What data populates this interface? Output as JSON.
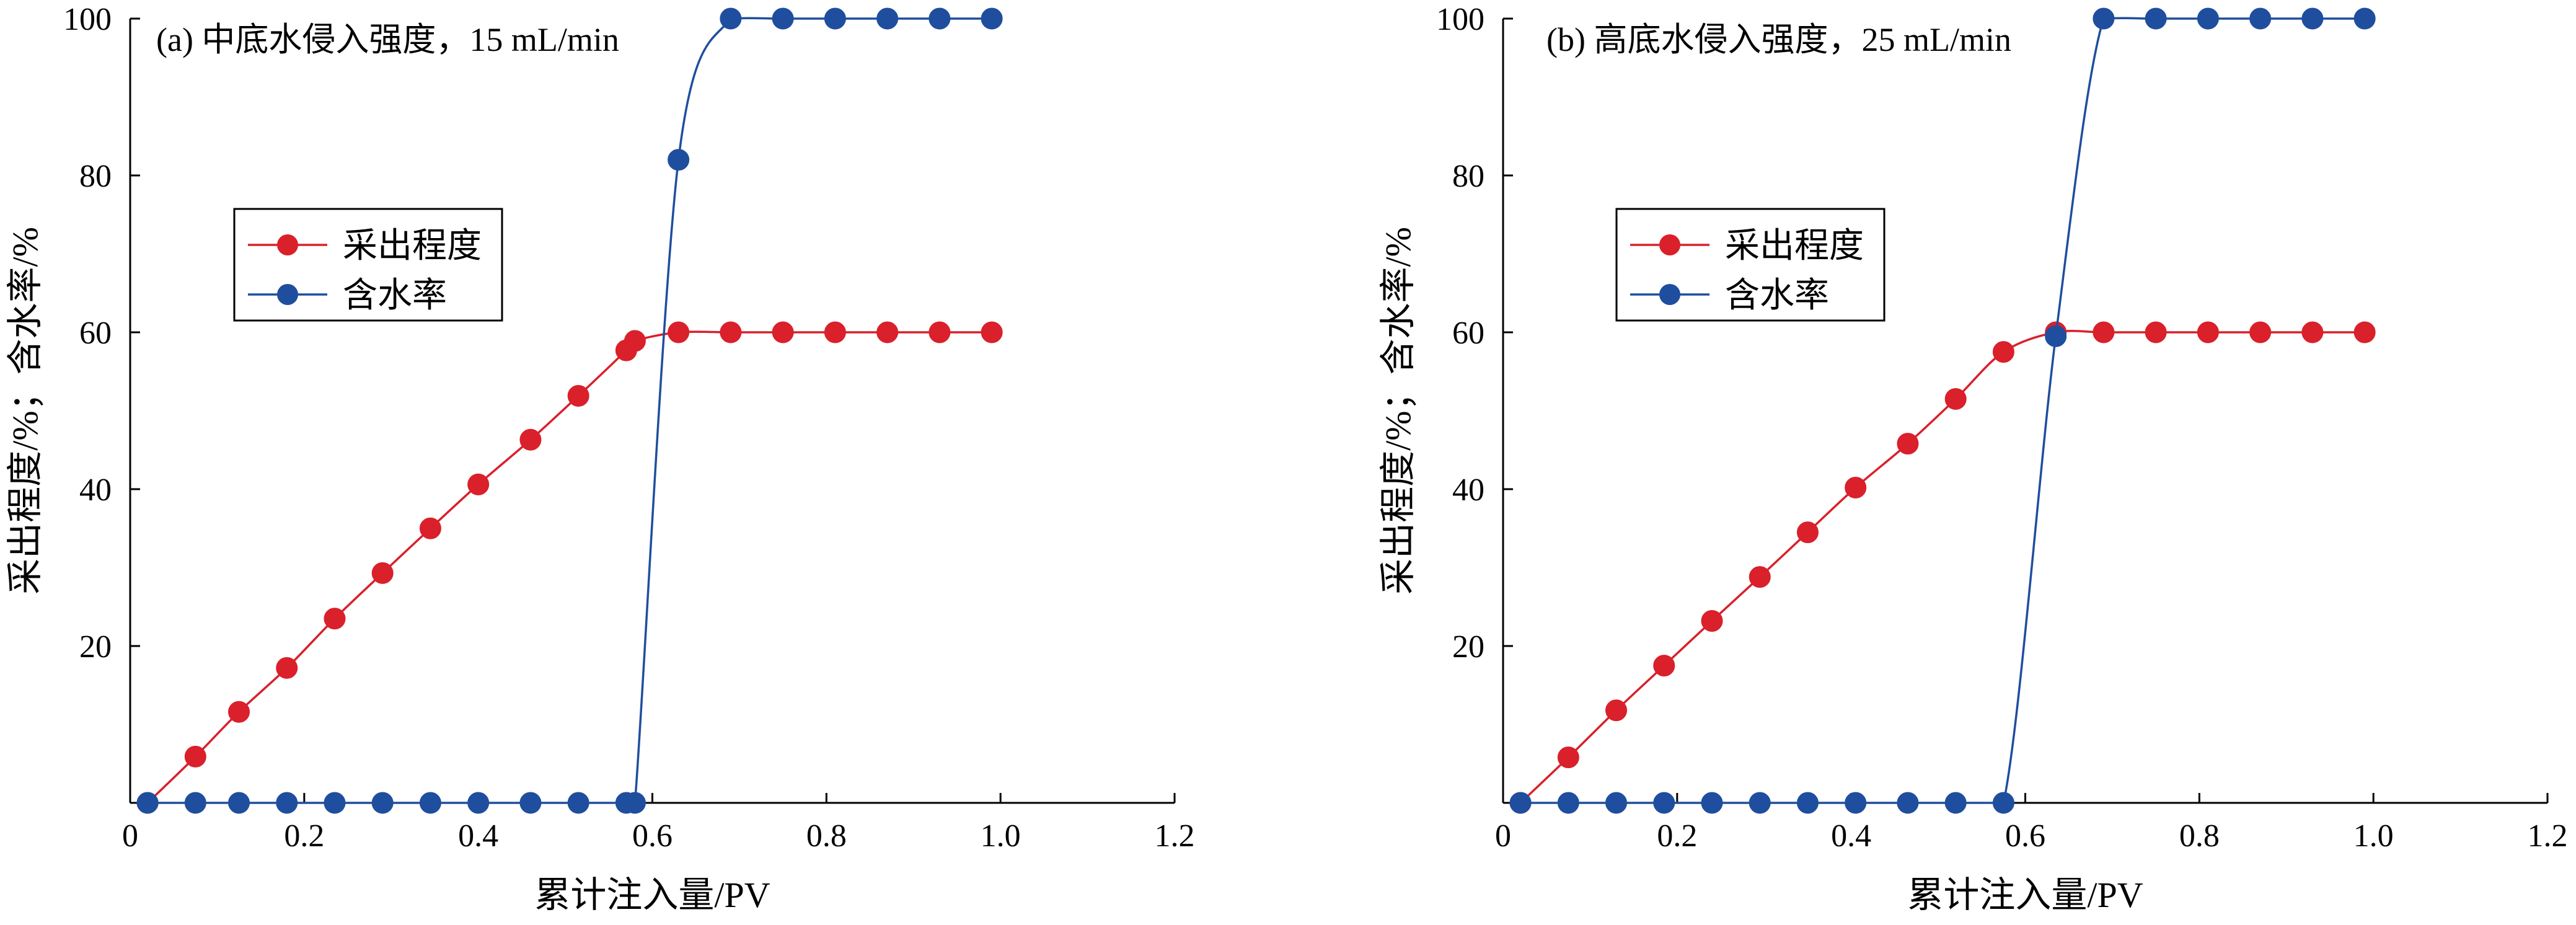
{
  "chart_data": [
    {
      "type": "line",
      "title": "(a) 中底水侵入强度，15 mL/min",
      "xlabel": "累计注入量/PV",
      "ylabel": "采出程度/%；含水率/%",
      "xlim": [
        0,
        1.2
      ],
      "ylim": [
        0,
        100
      ],
      "x_ticks": [
        "0",
        "0.2",
        "0.4",
        "0.6",
        "0.8",
        "1.0",
        "1.2"
      ],
      "y_ticks": [
        "20",
        "40",
        "60",
        "80",
        "100"
      ],
      "legend_position": "center-left",
      "series": [
        {
          "name": "采出程度",
          "color": "#d9202b",
          "points": [
            [
              0.02,
              0
            ],
            [
              0.075,
              5.9
            ],
            [
              0.125,
              11.6
            ],
            [
              0.18,
              17.2
            ],
            [
              0.235,
              23.5
            ],
            [
              0.29,
              29.3
            ],
            [
              0.345,
              35
            ],
            [
              0.4,
              40.6
            ],
            [
              0.46,
              46.3
            ],
            [
              0.515,
              51.9
            ],
            [
              0.57,
              57.7
            ],
            [
              0.58,
              58.9
            ],
            [
              0.63,
              60
            ],
            [
              0.69,
              60
            ],
            [
              0.75,
              60
            ],
            [
              0.81,
              60
            ],
            [
              0.87,
              60
            ],
            [
              0.93,
              60
            ],
            [
              0.99,
              60
            ]
          ]
        },
        {
          "name": "含水率",
          "color": "#1f4e9e",
          "points": [
            [
              0.02,
              0
            ],
            [
              0.075,
              0
            ],
            [
              0.125,
              0
            ],
            [
              0.18,
              0
            ],
            [
              0.235,
              0
            ],
            [
              0.29,
              0
            ],
            [
              0.345,
              0
            ],
            [
              0.4,
              0
            ],
            [
              0.46,
              0
            ],
            [
              0.515,
              0
            ],
            [
              0.57,
              0
            ],
            [
              0.58,
              0
            ],
            [
              0.63,
              82
            ],
            [
              0.69,
              100
            ],
            [
              0.75,
              100
            ],
            [
              0.81,
              100
            ],
            [
              0.87,
              100
            ],
            [
              0.93,
              100
            ],
            [
              0.99,
              100
            ]
          ]
        }
      ]
    },
    {
      "type": "line",
      "title": "(b) 高底水侵入强度，25 mL/min",
      "xlabel": "累计注入量/PV",
      "ylabel": "采出程度/%；含水率/%",
      "xlim": [
        0,
        1.2
      ],
      "ylim": [
        0,
        100
      ],
      "x_ticks": [
        "0",
        "0.2",
        "0.4",
        "0.6",
        "0.8",
        "1.0",
        "1.2"
      ],
      "y_ticks": [
        "20",
        "40",
        "60",
        "80",
        "100"
      ],
      "legend_position": "center-left",
      "series": [
        {
          "name": "采出程度",
          "color": "#d9202b",
          "points": [
            [
              0.02,
              0
            ],
            [
              0.075,
              5.8
            ],
            [
              0.13,
              11.8
            ],
            [
              0.185,
              17.5
            ],
            [
              0.24,
              23.2
            ],
            [
              0.295,
              28.8
            ],
            [
              0.35,
              34.5
            ],
            [
              0.405,
              40.2
            ],
            [
              0.465,
              45.8
            ],
            [
              0.52,
              51.5
            ],
            [
              0.575,
              57.5
            ],
            [
              0.635,
              60
            ],
            [
              0.69,
              60
            ],
            [
              0.75,
              60
            ],
            [
              0.81,
              60
            ],
            [
              0.87,
              60
            ],
            [
              0.93,
              60
            ],
            [
              0.99,
              60
            ]
          ]
        },
        {
          "name": "含水率",
          "color": "#1f4e9e",
          "points": [
            [
              0.02,
              0
            ],
            [
              0.075,
              0
            ],
            [
              0.13,
              0
            ],
            [
              0.185,
              0
            ],
            [
              0.24,
              0
            ],
            [
              0.295,
              0
            ],
            [
              0.35,
              0
            ],
            [
              0.405,
              0
            ],
            [
              0.465,
              0
            ],
            [
              0.52,
              0
            ],
            [
              0.575,
              0
            ],
            [
              0.635,
              59.5
            ],
            [
              0.69,
              100
            ],
            [
              0.75,
              100
            ],
            [
              0.81,
              100
            ],
            [
              0.87,
              100
            ],
            [
              0.93,
              100
            ],
            [
              0.99,
              100
            ]
          ]
        }
      ]
    }
  ]
}
